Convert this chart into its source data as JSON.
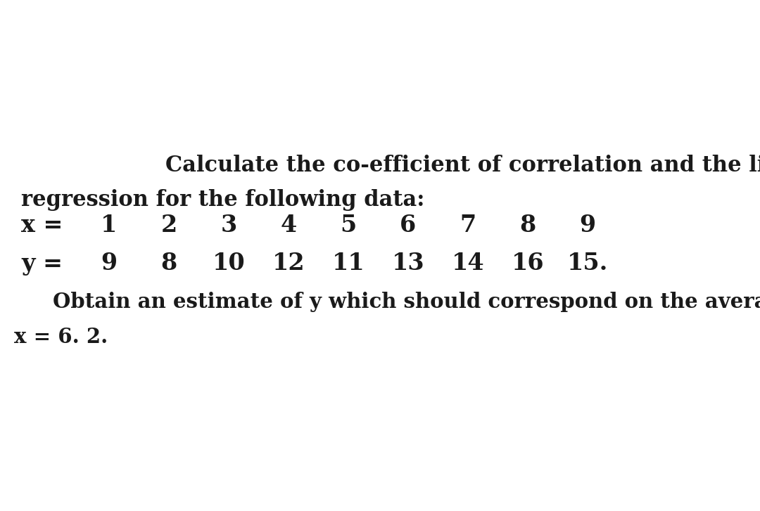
{
  "bg_color": "#ffffff",
  "text_color": "#1a1a1a",
  "title_line1": "Calculate the co-efficient of correlation and the lines of",
  "title_line2": "regression for the following data:",
  "x_label": "x =",
  "y_label": "y =",
  "x_values": [
    "1",
    "2",
    "3",
    "4",
    "5",
    "6",
    "7",
    "8",
    "9"
  ],
  "y_values": [
    "9",
    "8",
    "10",
    "12",
    "11",
    "13",
    "14",
    "16",
    "15."
  ],
  "bottom_line1": "Obtain an estimate of y which should correspond on the average to",
  "bottom_line2": "x = 6. 2.",
  "title_fontsize": 22,
  "data_fontsize": 24,
  "body_fontsize": 21
}
